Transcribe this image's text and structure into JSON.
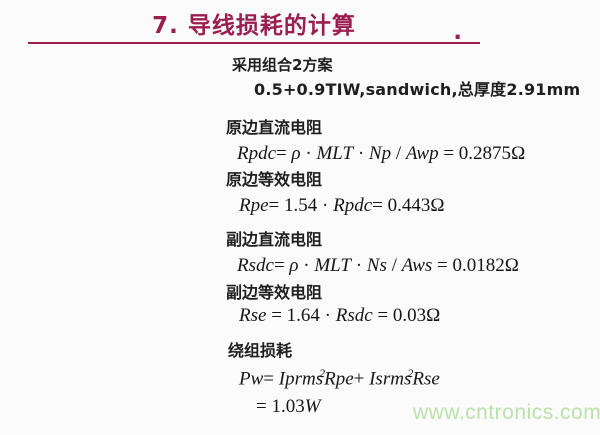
{
  "slide": {
    "title": "7. 导线损耗的计算",
    "title_period": ".",
    "scheme": "采用组合2方案",
    "config": "0.5+0.9TIW,sandwich,总厚度2.91mm",
    "sections": [
      {
        "label": "原边直流电阻",
        "formula": [
          {
            "t": "Rpdc",
            "i": 1
          },
          {
            "t": "= "
          },
          {
            "t": "ρ",
            "i": 1
          },
          {
            "t": " · "
          },
          {
            "t": "MLT",
            "i": 1
          },
          {
            "t": " · "
          },
          {
            "t": "Np",
            "i": 1
          },
          {
            "t": " / "
          },
          {
            "t": "Awp",
            "i": 1
          },
          {
            "t": " = 0.2875"
          },
          {
            "t": "Ω"
          }
        ]
      },
      {
        "label": "原边等效电阻",
        "formula": [
          {
            "t": "Rpe",
            "i": 1
          },
          {
            "t": "= 1.54 · "
          },
          {
            "t": "Rpdc",
            "i": 1
          },
          {
            "t": "= 0.443"
          },
          {
            "t": "Ω"
          }
        ]
      },
      {
        "label": "副边直流电阻",
        "formula": [
          {
            "t": "Rsdc",
            "i": 1
          },
          {
            "t": "= "
          },
          {
            "t": "ρ",
            "i": 1
          },
          {
            "t": " · "
          },
          {
            "t": "MLT",
            "i": 1
          },
          {
            "t": " · "
          },
          {
            "t": "Ns",
            "i": 1
          },
          {
            "t": " / "
          },
          {
            "t": "Aws",
            "i": 1
          },
          {
            "t": " = 0.0182"
          },
          {
            "t": "Ω"
          }
        ]
      },
      {
        "label": "副边等效电阻",
        "formula": [
          {
            "t": "Rse",
            "i": 1
          },
          {
            "t": " = 1.64 · "
          },
          {
            "t": "Rsdc",
            "i": 1
          },
          {
            "t": " = 0.03"
          },
          {
            "t": "Ω"
          }
        ]
      },
      {
        "label": "绕组损耗",
        "formula": [
          {
            "t": "Pw",
            "i": 1
          },
          {
            "t": "= "
          },
          {
            "t": "Iprms",
            "i": 1
          },
          {
            "t": "2",
            "sup": 1
          },
          {
            "t": "Rpe",
            "i": 1
          },
          {
            "t": "+ "
          },
          {
            "t": "Isrms",
            "i": 1
          },
          {
            "t": "2",
            "sup": 1
          },
          {
            "t": "Rse",
            "i": 1
          }
        ],
        "formula_result": [
          {
            "t": "= 1.03"
          },
          {
            "t": "W",
            "i": 1
          }
        ]
      }
    ],
    "watermark": "www.cntronics.com",
    "colors": {
      "title_accent": "#9b1e50",
      "body_text": "#1f1f1f",
      "watermark_green": "#b9e2ab",
      "background": "#fbfbfb"
    }
  }
}
